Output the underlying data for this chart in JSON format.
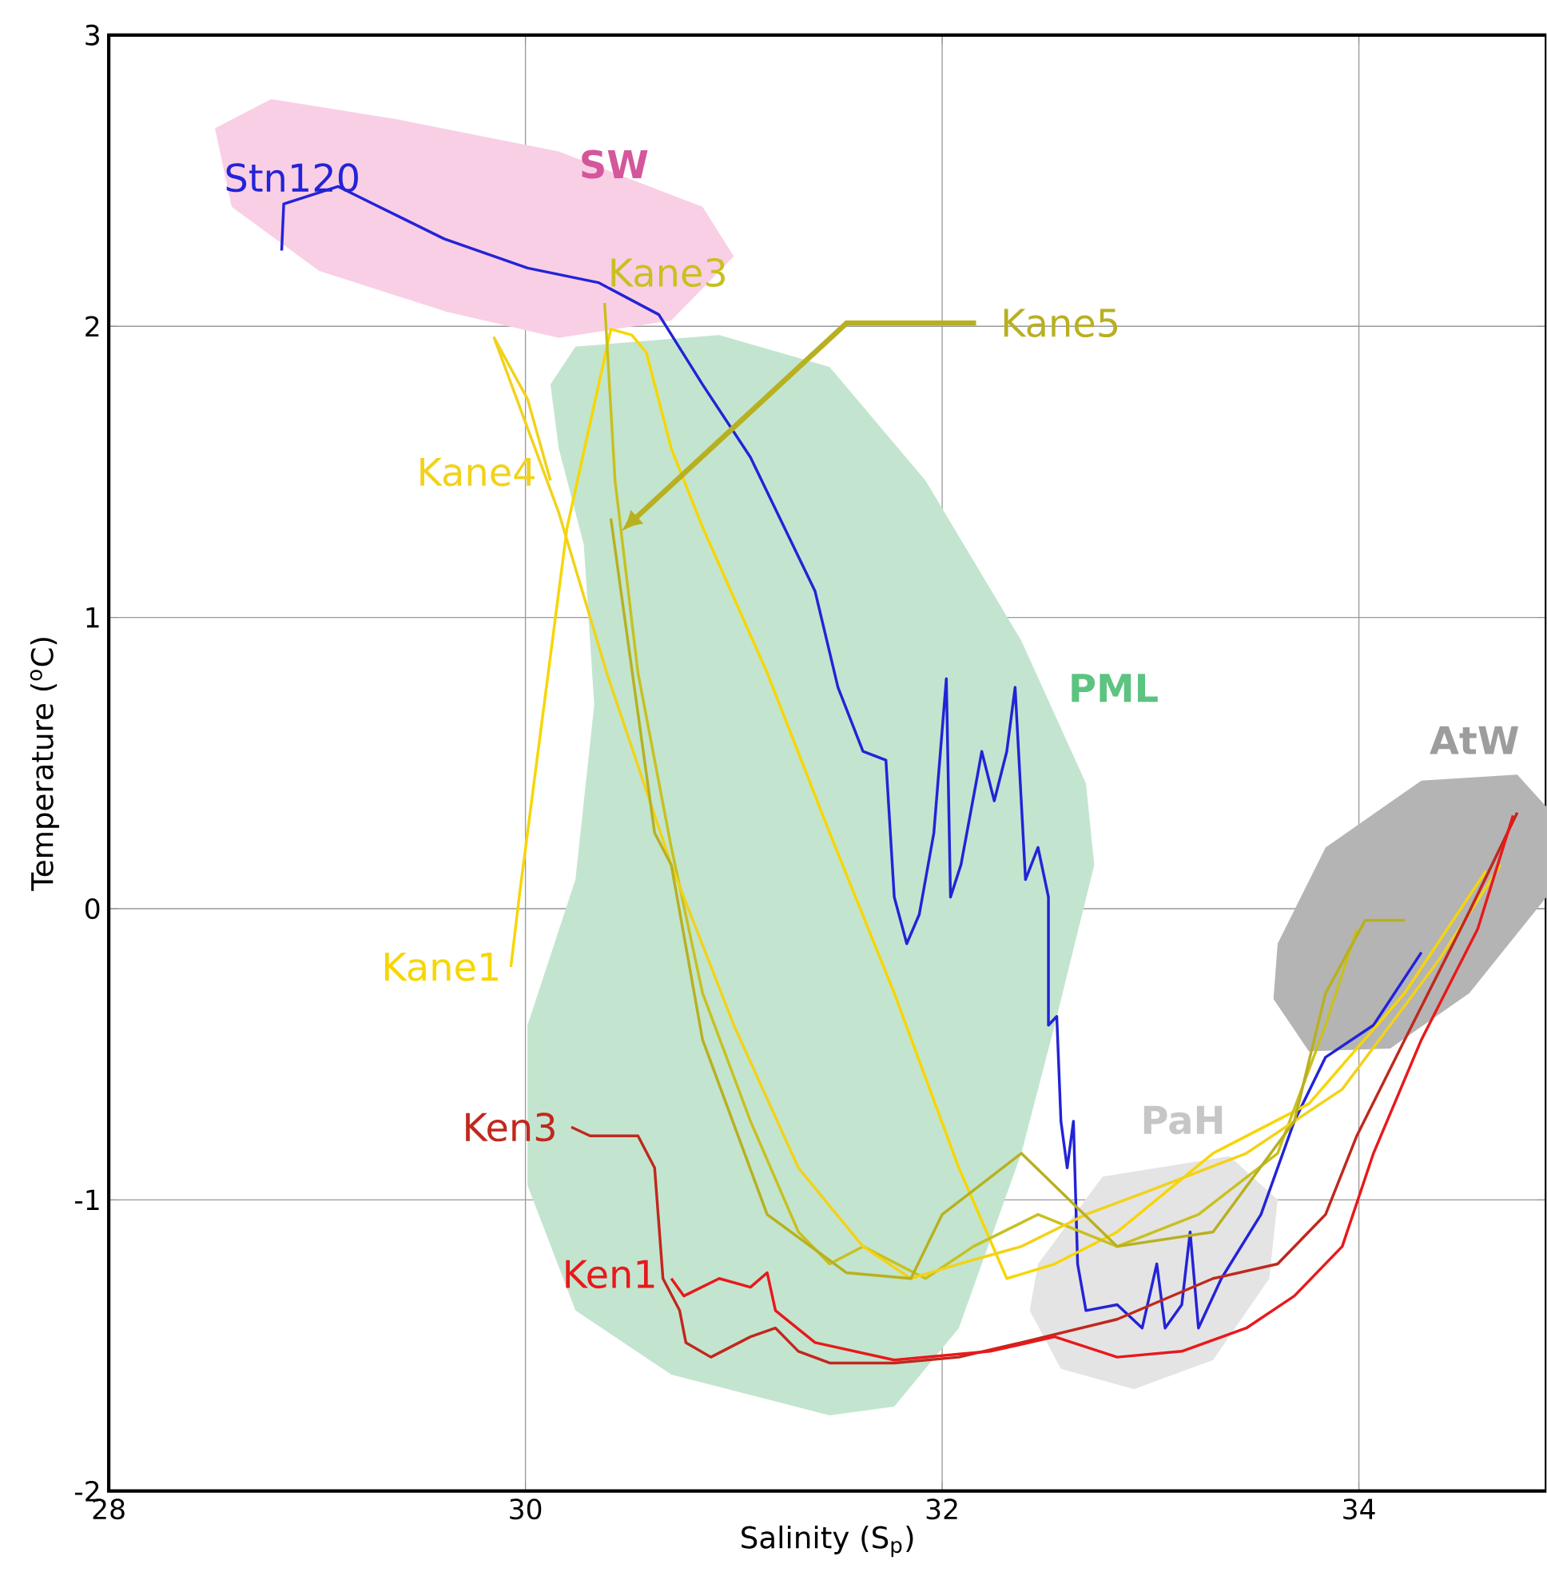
{
  "chart_data": {
    "type": "line",
    "xlabel": "Salinity (S$_{p}$)",
    "ylabel": "Temperature ($^{o}$C)",
    "xlim": [
      28,
      34.9
    ],
    "ylim": [
      -2,
      3
    ],
    "xticks": [
      28,
      30,
      32,
      34
    ],
    "yticks": [
      -2,
      -1,
      0,
      1,
      2,
      3
    ],
    "grid": true,
    "series": [
      {
        "type": "area",
        "name": "PML",
        "color": "#c3e5cf",
        "x": [
          30.12,
          30.24,
          30.93,
          31.46,
          31.92,
          32.38,
          32.69,
          32.73,
          32.54,
          32.38,
          32.08,
          31.77,
          31.46,
          30.7,
          30.24,
          30.01,
          30.01,
          30.24,
          30.33,
          30.28,
          30.16
        ],
        "values": [
          1.8,
          1.93,
          1.97,
          1.86,
          1.47,
          0.92,
          0.43,
          0.15,
          -0.4,
          -0.84,
          -1.44,
          -1.71,
          -1.74,
          -1.6,
          -1.38,
          -0.95,
          -0.4,
          0.1,
          0.7,
          1.25,
          1.58
        ]
      },
      {
        "type": "area",
        "name": "SW",
        "color": "#f9cfe6",
        "x": [
          28.51,
          28.78,
          29.39,
          30.16,
          30.85,
          31.0,
          30.7,
          30.16,
          29.62,
          29.01,
          28.59
        ],
        "values": [
          2.68,
          2.78,
          2.71,
          2.6,
          2.41,
          2.24,
          2.02,
          1.96,
          2.05,
          2.19,
          2.41
        ]
      },
      {
        "type": "area",
        "name": "PaH",
        "color": "#e4e4e4",
        "x": [
          32.46,
          32.77,
          33.38,
          33.61,
          33.57,
          33.3,
          32.92,
          32.57,
          32.42
        ],
        "values": [
          -1.22,
          -0.92,
          -0.85,
          -1.0,
          -1.27,
          -1.55,
          -1.65,
          -1.58,
          -1.38
        ]
      },
      {
        "type": "area",
        "name": "AtW",
        "color": "#b4b4b4",
        "x": [
          33.61,
          33.84,
          34.3,
          34.76,
          34.9,
          34.9,
          34.53,
          34.15,
          33.76,
          33.59
        ],
        "values": [
          -0.12,
          0.21,
          0.44,
          0.46,
          0.35,
          0.04,
          -0.29,
          -0.48,
          -0.49,
          -0.31
        ]
      },
      {
        "name": "Stn120",
        "color": "#2323d8",
        "x": [
          28.83,
          28.84,
          29.1,
          29.61,
          30.01,
          30.35,
          30.64,
          30.85,
          31.08,
          31.39,
          31.5,
          31.62,
          31.73,
          31.77,
          31.83,
          31.89,
          31.96,
          32.02,
          32.04,
          32.09,
          32.17,
          32.19,
          32.25,
          32.31,
          32.35,
          32.4,
          32.46,
          32.51,
          32.51,
          32.55,
          32.57,
          32.6,
          32.63,
          32.65,
          32.69,
          32.84,
          32.96,
          33.03,
          33.07,
          33.15,
          33.19,
          33.23,
          33.34,
          33.53,
          33.69,
          33.84,
          34.07,
          34.3
        ],
        "values": [
          2.26,
          2.42,
          2.48,
          2.3,
          2.2,
          2.15,
          2.04,
          1.8,
          1.55,
          1.09,
          0.76,
          0.54,
          0.51,
          0.04,
          -0.12,
          -0.02,
          0.26,
          0.79,
          0.04,
          0.15,
          0.46,
          0.54,
          0.37,
          0.54,
          0.76,
          0.1,
          0.21,
          0.04,
          -0.4,
          -0.37,
          -0.73,
          -0.89,
          -0.73,
          -1.22,
          -1.38,
          -1.36,
          -1.44,
          -1.22,
          -1.44,
          -1.36,
          -1.11,
          -1.44,
          -1.27,
          -1.05,
          -0.73,
          -0.51,
          -0.4,
          -0.15
        ]
      },
      {
        "name": "Kane1",
        "color": "#f7d600",
        "x": [
          29.93,
          29.97,
          30.2,
          30.41,
          30.51,
          30.58,
          30.7,
          30.85,
          31.16,
          31.46,
          31.77,
          32.08,
          32.31,
          32.54,
          32.84,
          33.3,
          33.76,
          34.22,
          34.61
        ],
        "values": [
          -0.2,
          0.04,
          1.31,
          1.99,
          1.97,
          1.91,
          1.58,
          1.31,
          0.81,
          0.26,
          -0.29,
          -0.89,
          -1.27,
          -1.22,
          -1.11,
          -0.84,
          -0.67,
          -0.29,
          0.13
        ]
      },
      {
        "name": "Kane3",
        "color": "#c8c020",
        "x": [
          30.38,
          30.43,
          30.54,
          30.7,
          30.85,
          31.08,
          31.31,
          31.46,
          31.62,
          31.92,
          32.15,
          32.46,
          32.84,
          33.23,
          33.61,
          33.84,
          33.99
        ],
        "values": [
          2.08,
          1.47,
          0.81,
          0.21,
          -0.29,
          -0.73,
          -1.11,
          -1.22,
          -1.16,
          -1.27,
          -1.16,
          -1.05,
          -1.16,
          -1.05,
          -0.84,
          -0.4,
          -0.07
        ]
      },
      {
        "name": "Kane4",
        "color": "#f2d21a",
        "x": [
          30.12,
          30.01,
          29.85,
          30.16,
          30.39,
          30.7,
          31.0,
          31.31,
          31.62,
          31.85,
          32.08,
          32.38,
          32.69,
          32.99,
          33.46,
          33.92,
          34.38,
          34.68
        ],
        "values": [
          1.47,
          1.75,
          1.96,
          1.36,
          0.81,
          0.15,
          -0.4,
          -0.89,
          -1.16,
          -1.27,
          -1.22,
          -1.16,
          -1.05,
          -0.97,
          -0.84,
          -0.62,
          -0.18,
          0.15
        ]
      },
      {
        "name": "Kane5",
        "color": "#b8b020",
        "x": [
          30.41,
          30.47,
          30.62,
          30.7,
          30.85,
          31.16,
          31.54,
          31.85,
          32.0,
          32.38,
          32.84,
          33.3,
          33.69,
          33.84,
          34.03,
          34.22
        ],
        "values": [
          1.34,
          1.03,
          0.26,
          0.15,
          -0.45,
          -1.05,
          -1.25,
          -1.27,
          -1.05,
          -0.84,
          -1.16,
          -1.11,
          -0.73,
          -0.29,
          -0.04,
          -0.04
        ]
      },
      {
        "name": "Ken3",
        "color": "#c0281e",
        "x": [
          30.22,
          30.31,
          30.54,
          30.62,
          30.66,
          30.74,
          30.77,
          30.89,
          31.08,
          31.2,
          31.31,
          31.46,
          31.77,
          32.08,
          32.38,
          32.84,
          33.3,
          33.61,
          33.84,
          33.99,
          34.22,
          34.53,
          34.76
        ],
        "values": [
          -0.75,
          -0.78,
          -0.78,
          -0.89,
          -1.27,
          -1.38,
          -1.49,
          -1.54,
          -1.47,
          -1.44,
          -1.52,
          -1.56,
          -1.56,
          -1.54,
          -1.49,
          -1.41,
          -1.27,
          -1.22,
          -1.05,
          -0.78,
          -0.45,
          -0.01,
          0.33
        ]
      },
      {
        "name": "Ken1",
        "color": "#e8191b",
        "x": [
          30.7,
          30.76,
          30.93,
          31.08,
          31.16,
          31.2,
          31.39,
          31.77,
          32.23,
          32.54,
          32.84,
          33.15,
          33.46,
          33.69,
          33.92,
          34.07,
          34.3,
          34.57,
          34.74
        ],
        "values": [
          -1.27,
          -1.33,
          -1.27,
          -1.3,
          -1.25,
          -1.38,
          -1.49,
          -1.55,
          -1.52,
          -1.47,
          -1.54,
          -1.52,
          -1.44,
          -1.33,
          -1.16,
          -0.84,
          -0.45,
          -0.07,
          0.32
        ]
      }
    ]
  }
}
